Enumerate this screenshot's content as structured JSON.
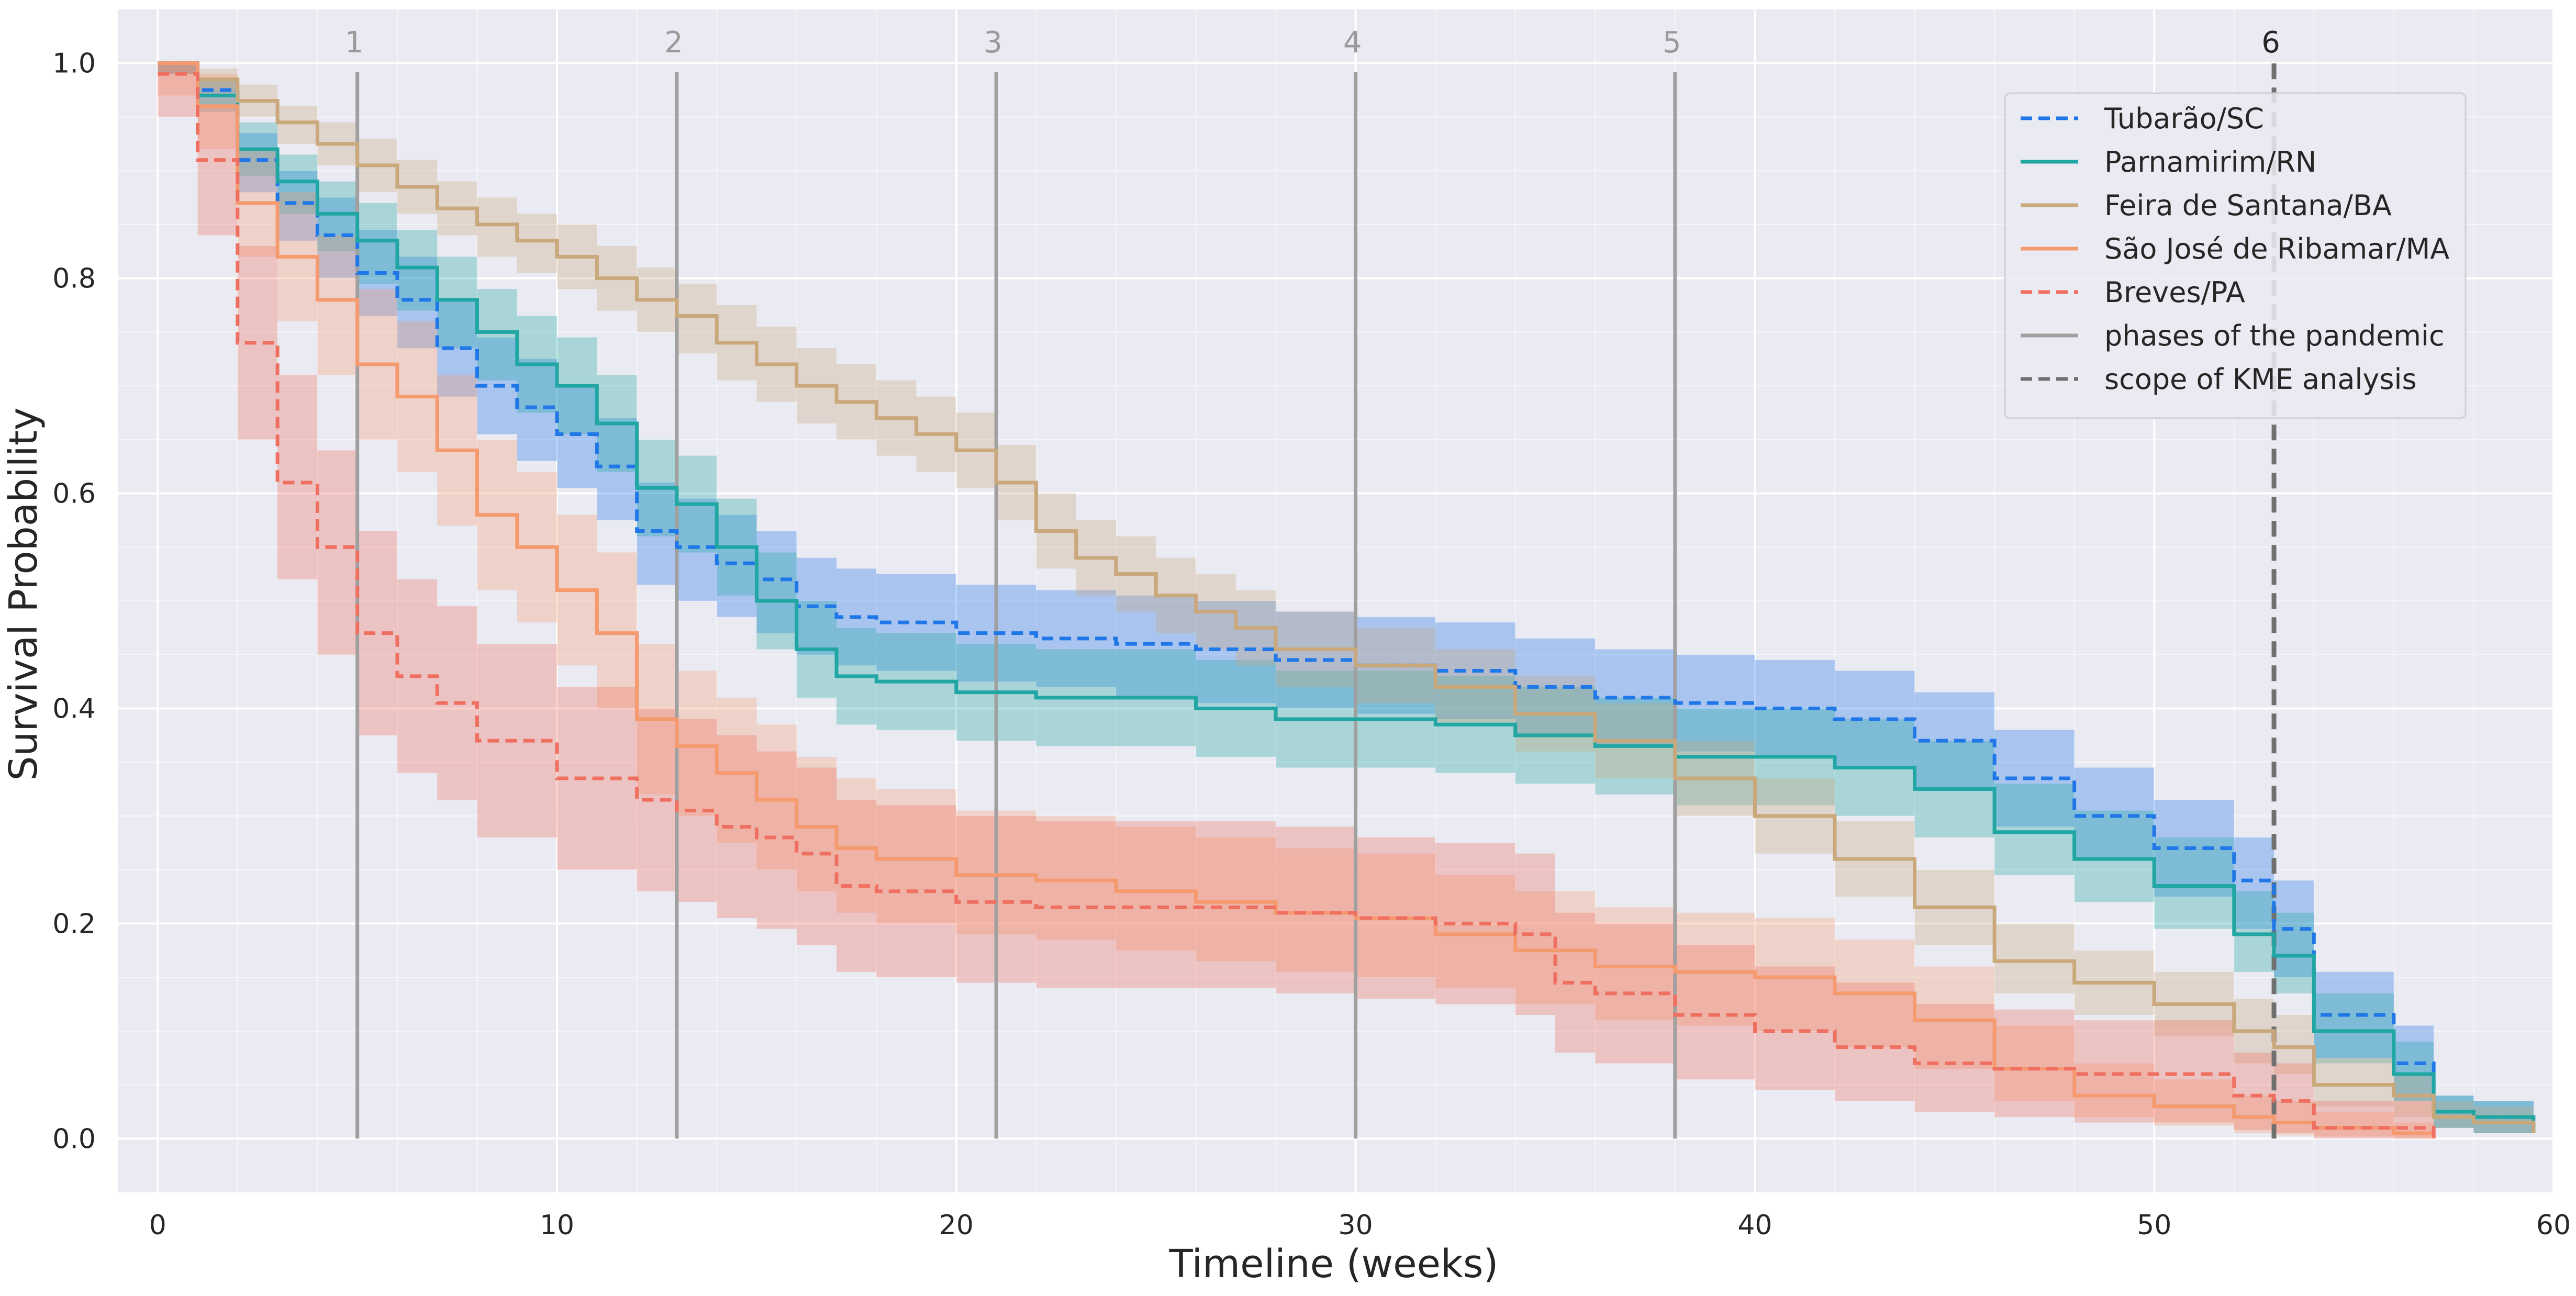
{
  "chart_data": {
    "type": "line",
    "subtype": "kaplan-meier step survival curves with confidence bands",
    "xlabel": "Timeline (weeks)",
    "ylabel": "Survival Probability",
    "xlim": [
      -1,
      60
    ],
    "ylim": [
      -0.05,
      1.05
    ],
    "xticks": [
      0,
      10,
      20,
      30,
      40,
      50,
      60
    ],
    "yticks": [
      0.0,
      0.2,
      0.4,
      0.6,
      0.8,
      1.0
    ],
    "xtick_labels": [
      "0",
      "10",
      "20",
      "30",
      "40",
      "50",
      "60"
    ],
    "ytick_labels": [
      "0.0",
      "0.2",
      "0.4",
      "0.6",
      "0.8",
      "1.0"
    ],
    "grid": true,
    "legend_position": "top-right",
    "series": [
      {
        "name": "Tubarão/SC",
        "color": "#1f77e8",
        "dash": "dashed",
        "x": [
          0,
          1,
          2,
          3,
          4,
          5,
          6,
          7,
          8,
          9,
          10,
          11,
          12,
          13,
          14,
          15,
          16,
          17,
          18,
          20,
          22,
          24,
          26,
          28,
          30,
          32,
          34,
          36,
          38,
          40,
          42,
          44,
          46,
          48,
          50,
          52,
          53,
          54,
          56,
          57,
          58,
          59.5
        ],
        "y": [
          1.0,
          0.975,
          0.91,
          0.87,
          0.84,
          0.805,
          0.78,
          0.735,
          0.7,
          0.68,
          0.655,
          0.625,
          0.565,
          0.55,
          0.535,
          0.52,
          0.495,
          0.485,
          0.48,
          0.47,
          0.465,
          0.46,
          0.455,
          0.445,
          0.44,
          0.435,
          0.42,
          0.41,
          0.405,
          0.4,
          0.39,
          0.37,
          0.335,
          0.3,
          0.27,
          0.24,
          0.195,
          0.115,
          0.07,
          0.025,
          0.02,
          0.005
        ],
        "ci_lower": [
          0.99,
          0.96,
          0.88,
          0.835,
          0.8,
          0.765,
          0.735,
          0.69,
          0.655,
          0.63,
          0.605,
          0.575,
          0.515,
          0.5,
          0.485,
          0.47,
          0.45,
          0.44,
          0.435,
          0.425,
          0.42,
          0.41,
          0.405,
          0.4,
          0.395,
          0.39,
          0.375,
          0.365,
          0.36,
          0.355,
          0.345,
          0.325,
          0.29,
          0.26,
          0.225,
          0.195,
          0.15,
          0.075,
          0.035,
          0.01,
          0.005,
          0.0
        ],
        "ci_upper": [
          1.0,
          0.985,
          0.935,
          0.9,
          0.875,
          0.845,
          0.82,
          0.78,
          0.745,
          0.725,
          0.7,
          0.67,
          0.61,
          0.595,
          0.58,
          0.565,
          0.54,
          0.53,
          0.525,
          0.515,
          0.51,
          0.505,
          0.5,
          0.49,
          0.485,
          0.48,
          0.465,
          0.455,
          0.45,
          0.445,
          0.435,
          0.415,
          0.38,
          0.345,
          0.315,
          0.28,
          0.24,
          0.155,
          0.105,
          0.04,
          0.035,
          0.01
        ]
      },
      {
        "name": "Parnamirim/RN",
        "color": "#21a7a3",
        "dash": "solid",
        "x": [
          0,
          1,
          2,
          3,
          4,
          5,
          6,
          7,
          8,
          9,
          10,
          11,
          12,
          13,
          14,
          15,
          16,
          17,
          18,
          20,
          22,
          24,
          26,
          28,
          30,
          32,
          34,
          36,
          38,
          40,
          42,
          44,
          46,
          48,
          50,
          52,
          53,
          54,
          56,
          57,
          58,
          59.5
        ],
        "y": [
          1.0,
          0.97,
          0.92,
          0.89,
          0.86,
          0.835,
          0.81,
          0.78,
          0.75,
          0.72,
          0.7,
          0.665,
          0.605,
          0.59,
          0.55,
          0.5,
          0.455,
          0.43,
          0.425,
          0.415,
          0.41,
          0.41,
          0.4,
          0.39,
          0.39,
          0.385,
          0.375,
          0.365,
          0.355,
          0.355,
          0.345,
          0.325,
          0.285,
          0.26,
          0.235,
          0.19,
          0.17,
          0.1,
          0.06,
          0.025,
          0.02,
          0.005
        ],
        "ci_lower": [
          0.99,
          0.955,
          0.895,
          0.86,
          0.825,
          0.795,
          0.77,
          0.735,
          0.705,
          0.675,
          0.655,
          0.62,
          0.56,
          0.545,
          0.505,
          0.455,
          0.41,
          0.385,
          0.38,
          0.37,
          0.365,
          0.365,
          0.355,
          0.345,
          0.345,
          0.34,
          0.33,
          0.32,
          0.31,
          0.31,
          0.3,
          0.28,
          0.245,
          0.22,
          0.195,
          0.155,
          0.135,
          0.07,
          0.035,
          0.01,
          0.005,
          0.0
        ],
        "ci_upper": [
          1.0,
          0.985,
          0.945,
          0.915,
          0.89,
          0.87,
          0.845,
          0.82,
          0.79,
          0.765,
          0.745,
          0.71,
          0.65,
          0.635,
          0.595,
          0.545,
          0.5,
          0.475,
          0.47,
          0.46,
          0.455,
          0.455,
          0.445,
          0.435,
          0.435,
          0.43,
          0.42,
          0.41,
          0.4,
          0.4,
          0.39,
          0.37,
          0.33,
          0.305,
          0.28,
          0.23,
          0.21,
          0.135,
          0.09,
          0.04,
          0.035,
          0.01
        ]
      },
      {
        "name": "Feira de Santana/BA",
        "color": "#c9a87c",
        "dash": "solid",
        "x": [
          0,
          1,
          2,
          3,
          4,
          5,
          6,
          7,
          8,
          9,
          10,
          11,
          12,
          13,
          14,
          15,
          16,
          17,
          18,
          19,
          20,
          21,
          22,
          23,
          24,
          25,
          26,
          27,
          28,
          30,
          32,
          34,
          36,
          38,
          40,
          42,
          44,
          46,
          48,
          50,
          52,
          53,
          54,
          56,
          57,
          58,
          59.5
        ],
        "y": [
          1.0,
          0.985,
          0.965,
          0.945,
          0.925,
          0.905,
          0.885,
          0.865,
          0.85,
          0.835,
          0.82,
          0.8,
          0.78,
          0.765,
          0.74,
          0.72,
          0.7,
          0.685,
          0.67,
          0.655,
          0.64,
          0.61,
          0.565,
          0.54,
          0.525,
          0.505,
          0.49,
          0.475,
          0.455,
          0.44,
          0.42,
          0.395,
          0.37,
          0.335,
          0.3,
          0.26,
          0.215,
          0.165,
          0.145,
          0.125,
          0.1,
          0.085,
          0.05,
          0.04,
          0.02,
          0.015,
          0.005
        ],
        "ci_lower": [
          0.99,
          0.975,
          0.95,
          0.925,
          0.905,
          0.88,
          0.86,
          0.84,
          0.82,
          0.805,
          0.79,
          0.77,
          0.75,
          0.73,
          0.705,
          0.685,
          0.665,
          0.65,
          0.635,
          0.62,
          0.605,
          0.575,
          0.53,
          0.505,
          0.49,
          0.47,
          0.455,
          0.44,
          0.42,
          0.405,
          0.385,
          0.36,
          0.335,
          0.3,
          0.265,
          0.225,
          0.18,
          0.135,
          0.115,
          0.095,
          0.07,
          0.06,
          0.03,
          0.02,
          0.01,
          0.005,
          0.0
        ],
        "ci_upper": [
          1.0,
          0.995,
          0.98,
          0.96,
          0.945,
          0.93,
          0.91,
          0.89,
          0.875,
          0.86,
          0.85,
          0.83,
          0.81,
          0.795,
          0.775,
          0.755,
          0.735,
          0.72,
          0.705,
          0.69,
          0.675,
          0.645,
          0.6,
          0.575,
          0.56,
          0.54,
          0.525,
          0.51,
          0.49,
          0.475,
          0.455,
          0.43,
          0.405,
          0.37,
          0.335,
          0.295,
          0.25,
          0.2,
          0.175,
          0.155,
          0.13,
          0.115,
          0.075,
          0.06,
          0.035,
          0.03,
          0.01
        ]
      },
      {
        "name": "São José de Ribamar/MA",
        "color": "#f59a6f",
        "dash": "solid",
        "x": [
          0,
          1,
          2,
          3,
          4,
          5,
          6,
          7,
          8,
          9,
          10,
          11,
          12,
          13,
          14,
          15,
          16,
          17,
          18,
          20,
          22,
          24,
          26,
          28,
          30,
          32,
          34,
          36,
          38,
          40,
          42,
          44,
          46,
          48,
          50,
          52,
          53,
          54,
          56,
          57
        ],
        "y": [
          1.0,
          0.96,
          0.87,
          0.82,
          0.78,
          0.72,
          0.69,
          0.64,
          0.58,
          0.55,
          0.51,
          0.47,
          0.39,
          0.365,
          0.34,
          0.315,
          0.29,
          0.27,
          0.26,
          0.245,
          0.24,
          0.23,
          0.22,
          0.21,
          0.205,
          0.19,
          0.175,
          0.16,
          0.155,
          0.15,
          0.135,
          0.11,
          0.065,
          0.04,
          0.03,
          0.02,
          0.015,
          0.01,
          0.005,
          0.0
        ],
        "ci_lower": [
          0.97,
          0.92,
          0.82,
          0.76,
          0.71,
          0.65,
          0.62,
          0.57,
          0.51,
          0.48,
          0.44,
          0.4,
          0.32,
          0.3,
          0.275,
          0.25,
          0.23,
          0.21,
          0.2,
          0.19,
          0.185,
          0.175,
          0.165,
          0.155,
          0.15,
          0.14,
          0.125,
          0.11,
          0.105,
          0.1,
          0.085,
          0.065,
          0.035,
          0.02,
          0.012,
          0.005,
          0.003,
          0.002,
          0.0,
          0.0
        ],
        "ci_upper": [
          1.0,
          0.99,
          0.92,
          0.88,
          0.84,
          0.79,
          0.76,
          0.71,
          0.65,
          0.62,
          0.58,
          0.545,
          0.46,
          0.435,
          0.41,
          0.385,
          0.355,
          0.335,
          0.325,
          0.305,
          0.3,
          0.29,
          0.28,
          0.27,
          0.265,
          0.245,
          0.23,
          0.215,
          0.21,
          0.205,
          0.185,
          0.16,
          0.105,
          0.07,
          0.055,
          0.04,
          0.035,
          0.025,
          0.015,
          0.005
        ]
      },
      {
        "name": "Breves/PA",
        "color": "#ef7060",
        "dash": "dashed",
        "x": [
          0,
          1,
          2,
          3,
          4,
          5,
          6,
          7,
          8,
          10,
          12,
          13,
          14,
          15,
          16,
          17,
          18,
          20,
          22,
          24,
          26,
          28,
          30,
          32,
          34,
          35,
          36,
          38,
          40,
          42,
          44,
          46,
          48,
          50,
          52,
          53,
          54,
          56,
          57
        ],
        "y": [
          0.99,
          0.91,
          0.74,
          0.61,
          0.55,
          0.47,
          0.43,
          0.405,
          0.37,
          0.335,
          0.315,
          0.305,
          0.29,
          0.28,
          0.265,
          0.235,
          0.23,
          0.22,
          0.215,
          0.215,
          0.215,
          0.21,
          0.205,
          0.2,
          0.19,
          0.145,
          0.135,
          0.115,
          0.1,
          0.085,
          0.07,
          0.065,
          0.06,
          0.06,
          0.04,
          0.035,
          0.01,
          0.01,
          0.0
        ],
        "ci_lower": [
          0.95,
          0.84,
          0.65,
          0.52,
          0.45,
          0.375,
          0.34,
          0.315,
          0.28,
          0.25,
          0.23,
          0.22,
          0.205,
          0.195,
          0.18,
          0.155,
          0.15,
          0.145,
          0.14,
          0.14,
          0.14,
          0.135,
          0.13,
          0.125,
          0.115,
          0.08,
          0.07,
          0.055,
          0.045,
          0.035,
          0.025,
          0.02,
          0.015,
          0.015,
          0.008,
          0.005,
          0.0,
          0.0,
          0.0
        ],
        "ci_upper": [
          1.0,
          0.96,
          0.83,
          0.71,
          0.64,
          0.565,
          0.52,
          0.495,
          0.46,
          0.42,
          0.4,
          0.39,
          0.375,
          0.36,
          0.345,
          0.315,
          0.31,
          0.3,
          0.295,
          0.295,
          0.295,
          0.29,
          0.28,
          0.275,
          0.265,
          0.21,
          0.2,
          0.18,
          0.16,
          0.145,
          0.125,
          0.12,
          0.11,
          0.11,
          0.08,
          0.07,
          0.035,
          0.035,
          0.01
        ]
      }
    ],
    "phase_lines": [
      {
        "label": "1",
        "x": 5
      },
      {
        "label": "2",
        "x": 13
      },
      {
        "label": "3",
        "x": 21
      },
      {
        "label": "4",
        "x": 30
      },
      {
        "label": "5",
        "x": 38
      }
    ],
    "scope_line": {
      "label": "6",
      "x": 53
    },
    "legend": [
      {
        "label": "Tubarão/SC",
        "color": "#1f77e8",
        "style": "dashed"
      },
      {
        "label": "Parnamirim/RN",
        "color": "#21a7a3",
        "style": "solid"
      },
      {
        "label": "Feira de Santana/BA",
        "color": "#c9a87c",
        "style": "solid"
      },
      {
        "label": "São José de Ribamar/MA",
        "color": "#f59a6f",
        "style": "solid"
      },
      {
        "label": "Breves/PA",
        "color": "#ef7060",
        "style": "dashed"
      },
      {
        "label": "phases of the pandemic",
        "color": "#a0a0a0",
        "style": "solid"
      },
      {
        "label": "scope of KME analysis",
        "color": "#707070",
        "style": "dashed"
      }
    ],
    "colors": {
      "plot_background": "#eaeaf2",
      "grid": "#ffffff",
      "phase_line": "#a0a0a0",
      "scope_line": "#707070"
    }
  }
}
